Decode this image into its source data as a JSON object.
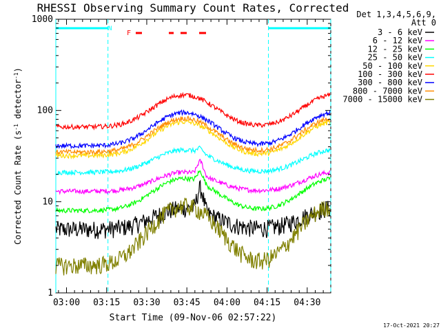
{
  "chart_data": {
    "type": "line",
    "title": "RHESSI Observing Summary Count Rates, Corrected",
    "xlabel": "Start Time (09-Nov-06 02:57:22)",
    "ylabel_prefix": "Corrected Count Rate (s",
    "ylabel_sup1": "-1",
    "ylabel_mid": " detector",
    "ylabel_sup2": "-1",
    "ylabel_suffix": ")",
    "yscale": "log",
    "ylim": [
      1,
      1000
    ],
    "xlim_minutes": [
      -4,
      38
    ],
    "y_tick_labels": [
      "1",
      "10",
      "100",
      "1000"
    ],
    "x_tick_labels": [
      "03:00",
      "03:15",
      "03:30",
      "03:45",
      "04:00",
      "04:15",
      "04:30"
    ],
    "x_tick_minutes": [
      0,
      15,
      30,
      45,
      60,
      75,
      90
    ],
    "legend_header": [
      "Det 1,3,4,5,6,9,",
      "Att 0"
    ],
    "legend_position": "right",
    "series": [
      {
        "name": "3 - 6 keV",
        "color": "#000000",
        "base": 5,
        "amp": 3.5
      },
      {
        "name": "6 - 12 keV",
        "color": "#ff00ff",
        "base": 13,
        "amp": 8
      },
      {
        "name": "12 - 25 keV",
        "color": "#00ff00",
        "base": 8,
        "amp": 10
      },
      {
        "name": "25 - 50 keV",
        "color": "#00ffff",
        "base": 21,
        "amp": 16
      },
      {
        "name": "50 - 100 keV",
        "color": "#ffd700",
        "base": 32,
        "amp": 43
      },
      {
        "name": "100 - 300 keV",
        "color": "#ff0000",
        "base": 66,
        "amp": 82
      },
      {
        "name": "300 - 800 keV",
        "color": "#0000ff",
        "base": 41,
        "amp": 54
      },
      {
        "name": "800 - 7000 keV",
        "color": "#ff8c00",
        "base": 35,
        "amp": 47
      },
      {
        "name": "7000 - 15000 keV",
        "color": "#808000",
        "base": 2,
        "amp": 7
      }
    ],
    "night_intervals_minutes": [
      [
        -4,
        15.5
      ],
      [
        75.5,
        98.8
      ]
    ],
    "annotations": {
      "night_flag": "N",
      "flare_flag": "F"
    },
    "flare_marker_color": "#ff0000",
    "night_marker_color": "#00ffff",
    "timestamp": "17-Oct-2021 20:27"
  }
}
